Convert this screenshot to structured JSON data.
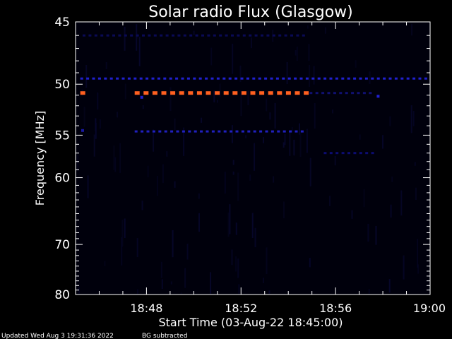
{
  "chart_data": {
    "type": "heatmap",
    "title": "Solar radio Flux (Glasgow)",
    "xlabel": "Start Time (03-Aug-22 18:45:00)",
    "ylabel": "Frequency [MHz]",
    "footer_updated": "Updated Wed Aug  3 19:31:36 2022",
    "footer_note": "BG subtracted",
    "x_range_minutes": [
      0,
      15
    ],
    "x_ticks": [
      {
        "label": "18:48",
        "minutes": 3
      },
      {
        "label": "18:52",
        "minutes": 7
      },
      {
        "label": "18:56",
        "minutes": 11
      },
      {
        "label": "19:00",
        "minutes": 15
      }
    ],
    "y_scale": "reciprocal",
    "y_range_mhz": [
      45,
      80
    ],
    "y_ticks": [
      {
        "label": "45",
        "mhz": 45
      },
      {
        "label": "50",
        "mhz": 50
      },
      {
        "label": "55",
        "mhz": 55
      },
      {
        "label": "60",
        "mhz": 60
      },
      {
        "label": "70",
        "mhz": 70
      },
      {
        "label": "80",
        "mhz": 80
      }
    ],
    "features": [
      {
        "kind": "dashed-band",
        "mhz": 49.5,
        "from_min": 0.2,
        "to_min": 15.0,
        "color": "#2020d0"
      },
      {
        "kind": "dashed-band",
        "mhz": 50.8,
        "from_min": 0.2,
        "to_min": 0.4,
        "color": "#ff6020"
      },
      {
        "kind": "dashed-band",
        "mhz": 50.8,
        "from_min": 2.5,
        "to_min": 9.8,
        "color": "#ff6020"
      },
      {
        "kind": "dashed-band",
        "mhz": 50.8,
        "from_min": 9.9,
        "to_min": 12.5,
        "color": "#101070"
      },
      {
        "kind": "dashed-band",
        "mhz": 54.6,
        "from_min": 2.5,
        "to_min": 9.8,
        "color": "#2020c0"
      },
      {
        "kind": "dashed-band",
        "mhz": 46.0,
        "from_min": 0.3,
        "to_min": 9.8,
        "color": "#0a0a55"
      },
      {
        "kind": "dashed-band",
        "mhz": 57.0,
        "from_min": 10.5,
        "to_min": 12.8,
        "color": "#0c0c70"
      },
      {
        "kind": "dot",
        "mhz": 51.2,
        "minute": 2.8,
        "color": "#2020d0"
      },
      {
        "kind": "dot",
        "mhz": 51.1,
        "minute": 12.8,
        "color": "#2020d0"
      },
      {
        "kind": "dot",
        "mhz": 54.5,
        "minute": 0.3,
        "color": "#1818a0"
      }
    ]
  }
}
